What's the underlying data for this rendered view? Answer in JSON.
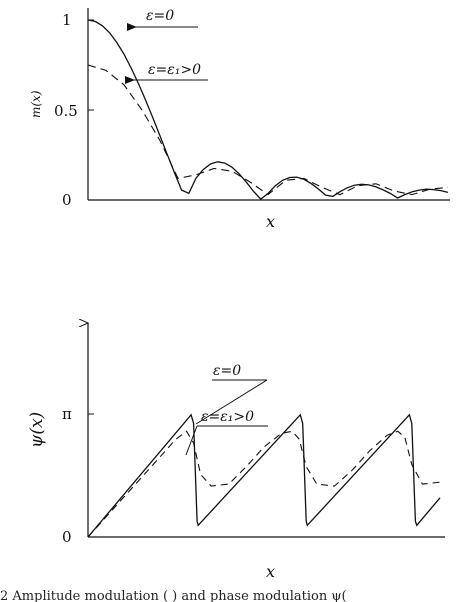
{
  "chart_data": [
    {
      "type": "line",
      "title": "",
      "xlabel": "x",
      "ylabel": "m(x)",
      "ylim": [
        0,
        1.1
      ],
      "yticks": [
        "0",
        "0.5",
        "1"
      ],
      "series": [
        {
          "style": "solid",
          "x": [
            0.0,
            0.02,
            0.04,
            0.06,
            0.08,
            0.1,
            0.12,
            0.14,
            0.16,
            0.18,
            0.2,
            0.22,
            0.24,
            0.26,
            0.28,
            0.3,
            0.32,
            0.34,
            0.36,
            0.38,
            0.4,
            0.42,
            0.44,
            0.46,
            0.48,
            0.5,
            0.52,
            0.54,
            0.56,
            0.58,
            0.6,
            0.62,
            0.64,
            0.66,
            0.68,
            0.7,
            0.72,
            0.74,
            0.76,
            0.78,
            0.8,
            0.82,
            0.84,
            0.86,
            0.88,
            0.9,
            0.92,
            0.94,
            0.96,
            0.98,
            1.0
          ],
          "y": [
            1.0,
            0.992,
            0.968,
            0.929,
            0.875,
            0.81,
            0.733,
            0.647,
            0.555,
            0.457,
            0.356,
            0.254,
            0.153,
            0.055,
            0.037,
            0.121,
            0.169,
            0.2,
            0.212,
            0.205,
            0.182,
            0.145,
            0.099,
            0.047,
            0.005,
            0.036,
            0.079,
            0.109,
            0.125,
            0.127,
            0.115,
            0.091,
            0.061,
            0.027,
            0.02,
            0.046,
            0.068,
            0.082,
            0.087,
            0.084,
            0.073,
            0.056,
            0.036,
            0.011,
            0.03,
            0.045,
            0.055,
            0.06,
            0.058,
            0.052,
            0.042
          ]
        },
        {
          "style": "dashed",
          "x": [
            0.0,
            0.05,
            0.1,
            0.15,
            0.2,
            0.25,
            0.3,
            0.35,
            0.4,
            0.45,
            0.5,
            0.55,
            0.6,
            0.65,
            0.7,
            0.75,
            0.8,
            0.85,
            0.9,
            0.95,
            1.0
          ],
          "y": [
            0.75,
            0.72,
            0.64,
            0.5,
            0.33,
            0.12,
            0.14,
            0.175,
            0.16,
            0.1,
            0.03,
            0.11,
            0.12,
            0.07,
            0.03,
            0.08,
            0.09,
            0.05,
            0.03,
            0.06,
            0.07
          ]
        }
      ],
      "annotations": [
        {
          "text": "ε=0",
          "target": "solid"
        },
        {
          "text": "ε=ε₁>0",
          "target": "dashed"
        }
      ]
    },
    {
      "type": "line",
      "title": "",
      "xlabel": "x",
      "ylabel": "ψ(x)",
      "ylim": [
        0,
        4.2
      ],
      "yticks": [
        "0",
        "π"
      ],
      "series": [
        {
          "style": "solid",
          "x": [
            0.0,
            0.293,
            0.3,
            0.31,
            0.313,
            0.603,
            0.61,
            0.62,
            0.623,
            0.913,
            0.92,
            0.93,
            0.934,
            1.0
          ],
          "y": [
            0.0,
            3.12,
            2.9,
            0.4,
            0.3,
            3.12,
            2.9,
            0.4,
            0.3,
            3.12,
            2.9,
            0.4,
            0.3,
            1.0
          ]
        },
        {
          "style": "dashed",
          "x": [
            0.0,
            0.05,
            0.1,
            0.15,
            0.2,
            0.25,
            0.28,
            0.3,
            0.32,
            0.35,
            0.4,
            0.45,
            0.5,
            0.55,
            0.58,
            0.6,
            0.62,
            0.65,
            0.7,
            0.75,
            0.8,
            0.85,
            0.88,
            0.9,
            0.92,
            0.95,
            1.0
          ],
          "y": [
            0.0,
            0.5,
            1.0,
            1.5,
            2.0,
            2.5,
            2.7,
            2.4,
            1.6,
            1.3,
            1.35,
            1.8,
            2.3,
            2.65,
            2.7,
            2.5,
            1.8,
            1.35,
            1.3,
            1.7,
            2.2,
            2.6,
            2.7,
            2.55,
            1.85,
            1.35,
            1.4
          ]
        }
      ],
      "annotations": [
        {
          "text": "ε=0",
          "target": "solid"
        },
        {
          "text": "ε=ε₁>0",
          "target": "dashed"
        }
      ]
    }
  ],
  "caption": "2    Amplitude modulation   ( )  and phase modulation  ψ("
}
